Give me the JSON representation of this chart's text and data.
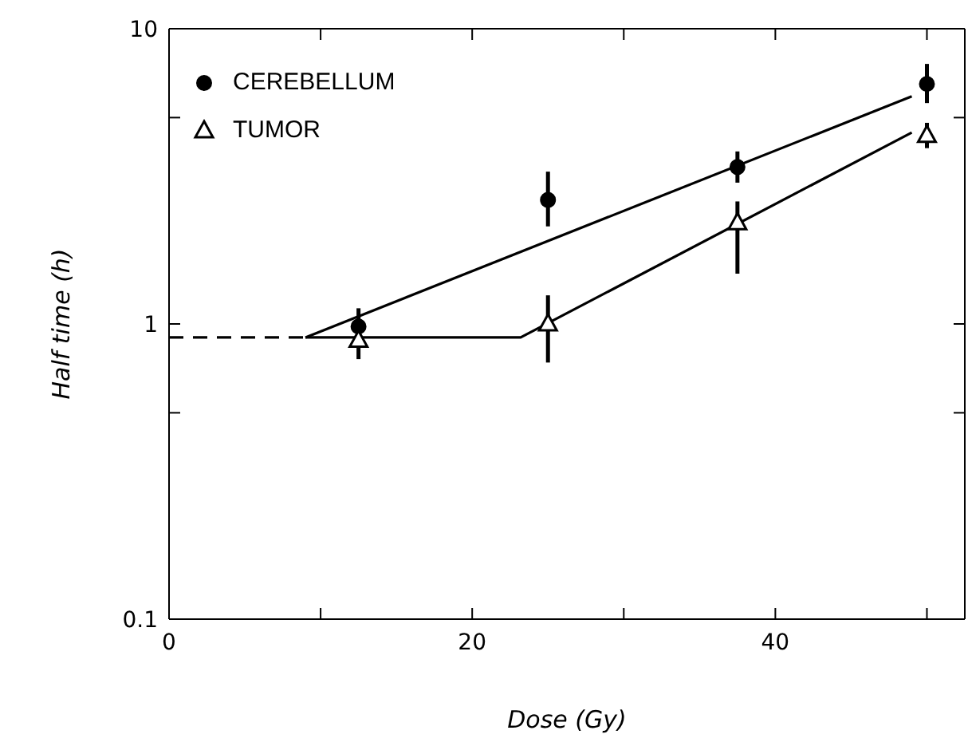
{
  "chart_data": {
    "type": "scatter",
    "xlabel": "Dose (Gy)",
    "ylabel": "Half time (h)",
    "log": "y",
    "xlim": [
      0,
      52.5
    ],
    "xticks": [
      0,
      {
        "value": 10,
        "label": null
      },
      20,
      {
        "value": 30,
        "label": null
      },
      40,
      {
        "value": 50,
        "label": null
      }
    ],
    "ylim": [
      0.1,
      10
    ],
    "yticks": [
      0.1,
      {
        "value": 0.5,
        "label": null
      },
      1,
      {
        "value": 5,
        "label": null
      },
      10
    ],
    "legend": "top left",
    "series": [
      {
        "name": "CEREBELLUM",
        "color": "#000000",
        "marker": "circle",
        "x": [
          12.5,
          25,
          37.5,
          50
        ],
        "values": [
          0.98,
          2.63,
          3.4,
          6.5
        ],
        "errors": [
          [
            0.86,
            1.13
          ],
          [
            2.14,
            3.28
          ],
          [
            3.01,
            3.84
          ],
          [
            5.6,
            7.6
          ]
        ]
      },
      {
        "name": "TUMOR",
        "color": "#000000",
        "marker": "triangle",
        "x": [
          12.5,
          25,
          37.5,
          50
        ],
        "values": [
          0.88,
          1.0,
          2.2,
          4.35
        ],
        "errors": [
          [
            0.76,
            1.06
          ],
          [
            0.74,
            1.25
          ],
          [
            1.48,
            2.6
          ],
          [
            3.94,
            4.8
          ]
        ]
      },
      {
        "type": "line",
        "color": "#000000",
        "line_style": "dashed",
        "x": [
          0,
          9
        ],
        "values": [
          0.9,
          0.9
        ]
      },
      {
        "type": "line",
        "color": "#000000",
        "line_style": "solid",
        "x": [
          9,
          49
        ],
        "values": [
          0.9,
          5.9
        ]
      },
      {
        "type": "line",
        "color": "#000000",
        "line_style": "solid",
        "x": [
          9,
          23.2,
          49
        ],
        "values": [
          0.9,
          0.9,
          4.45
        ]
      }
    ]
  }
}
